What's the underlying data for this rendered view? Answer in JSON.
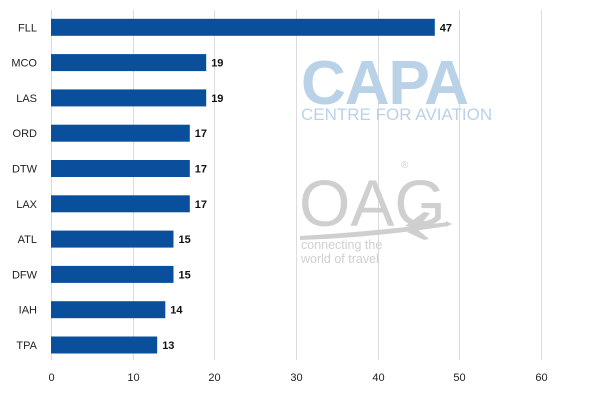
{
  "chart_data": {
    "type": "bar",
    "orientation": "horizontal",
    "categories": [
      "FLL",
      "MCO",
      "LAS",
      "ORD",
      "DTW",
      "LAX",
      "ATL",
      "DFW",
      "IAH",
      "TPA"
    ],
    "values": [
      47,
      19,
      19,
      17,
      17,
      17,
      15,
      15,
      14,
      13
    ],
    "xlim": [
      0,
      60
    ],
    "xticks": [
      0,
      10,
      20,
      30,
      40,
      50,
      60
    ],
    "xlabel": "",
    "ylabel": "",
    "grid": true,
    "legend": "none",
    "data_labels": true,
    "bar_color": "#0a4f9c"
  },
  "watermark": {
    "capa_logo": "CAPA",
    "capa_subtitle": "CENTRE FOR AVIATION",
    "capa_color": "#b9d2e8",
    "oag_logo": "OAG",
    "oag_registered": "®",
    "oag_tagline_1": "connecting the",
    "oag_tagline_2": "world of travel",
    "oag_color": "#cfcfcf",
    "plane_icon": "airplane-icon"
  }
}
